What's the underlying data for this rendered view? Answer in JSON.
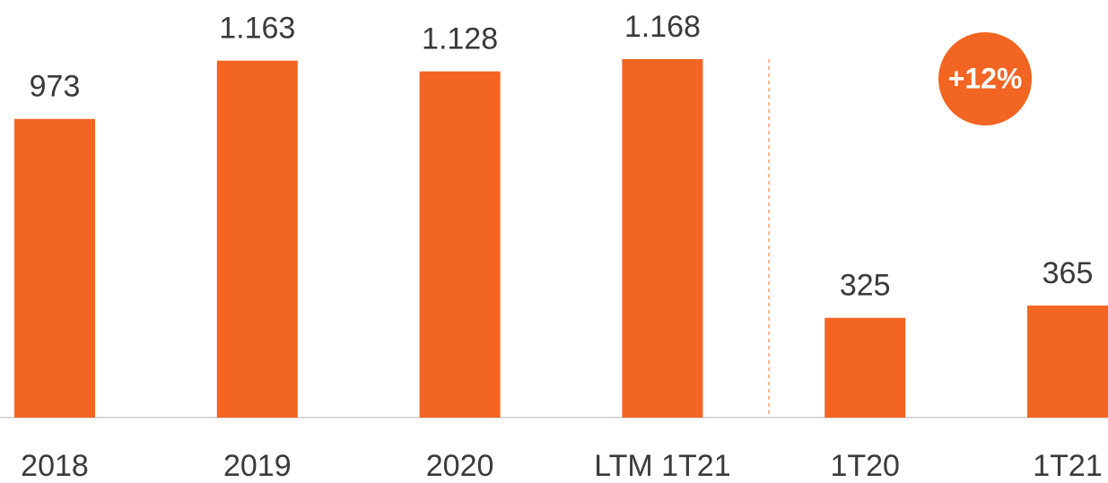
{
  "chart_data": {
    "type": "bar",
    "categories": [
      "2018",
      "2019",
      "2020",
      "LTM 1T21",
      "1T20",
      "1T21"
    ],
    "values": [
      973,
      1163,
      1128,
      1168,
      325,
      365
    ],
    "value_labels": [
      "973",
      "1.163",
      "1.128",
      "1.168",
      "325",
      "365"
    ],
    "color": "#f26522",
    "ylim": [
      0,
      1200
    ],
    "annotation": "+12%"
  }
}
